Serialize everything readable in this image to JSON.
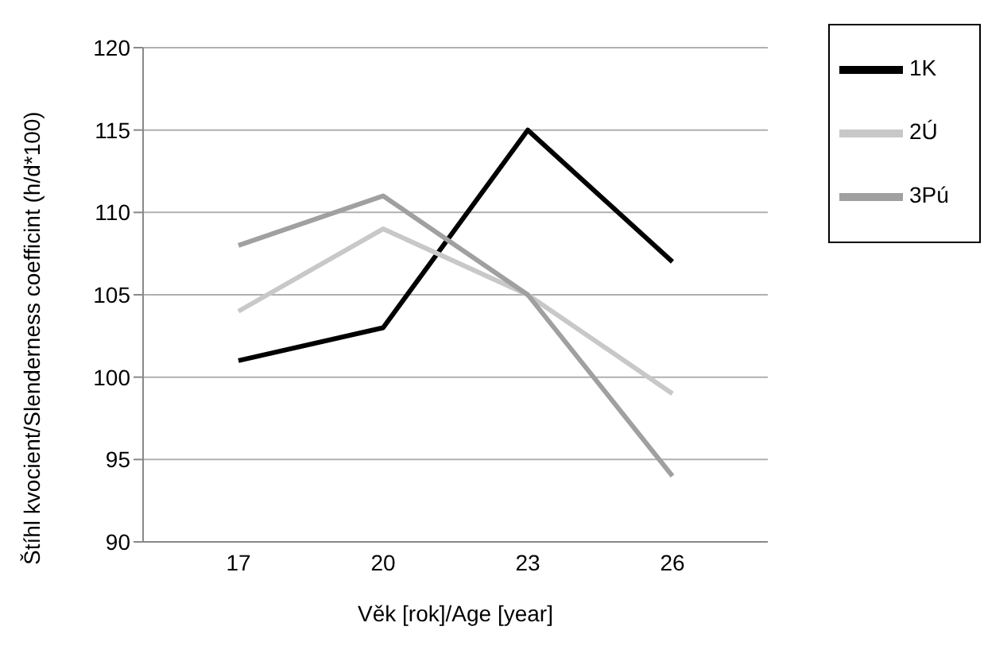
{
  "chart_data": {
    "type": "line",
    "xlabel": "Věk [rok]/Age [year]",
    "ylabel": "Štíhl kvocient/Slenderness coefficint (h/d*100)",
    "categories": [
      "17",
      "20",
      "23",
      "26"
    ],
    "series": [
      {
        "name": "1K",
        "color": "#000000",
        "values": [
          101,
          103,
          115,
          107
        ]
      },
      {
        "name": "2Ú",
        "color": "#c8c8c8",
        "values": [
          104,
          109,
          105,
          99
        ]
      },
      {
        "name": "3Pú",
        "color": "#a0a0a0",
        "values": [
          108,
          111,
          105,
          94
        ]
      }
    ],
    "ylim": [
      90,
      120
    ],
    "yticks": [
      90,
      95,
      100,
      105,
      110,
      115,
      120
    ],
    "grid": "y",
    "legend": "top right",
    "marker": "none",
    "line_style": "solid"
  }
}
